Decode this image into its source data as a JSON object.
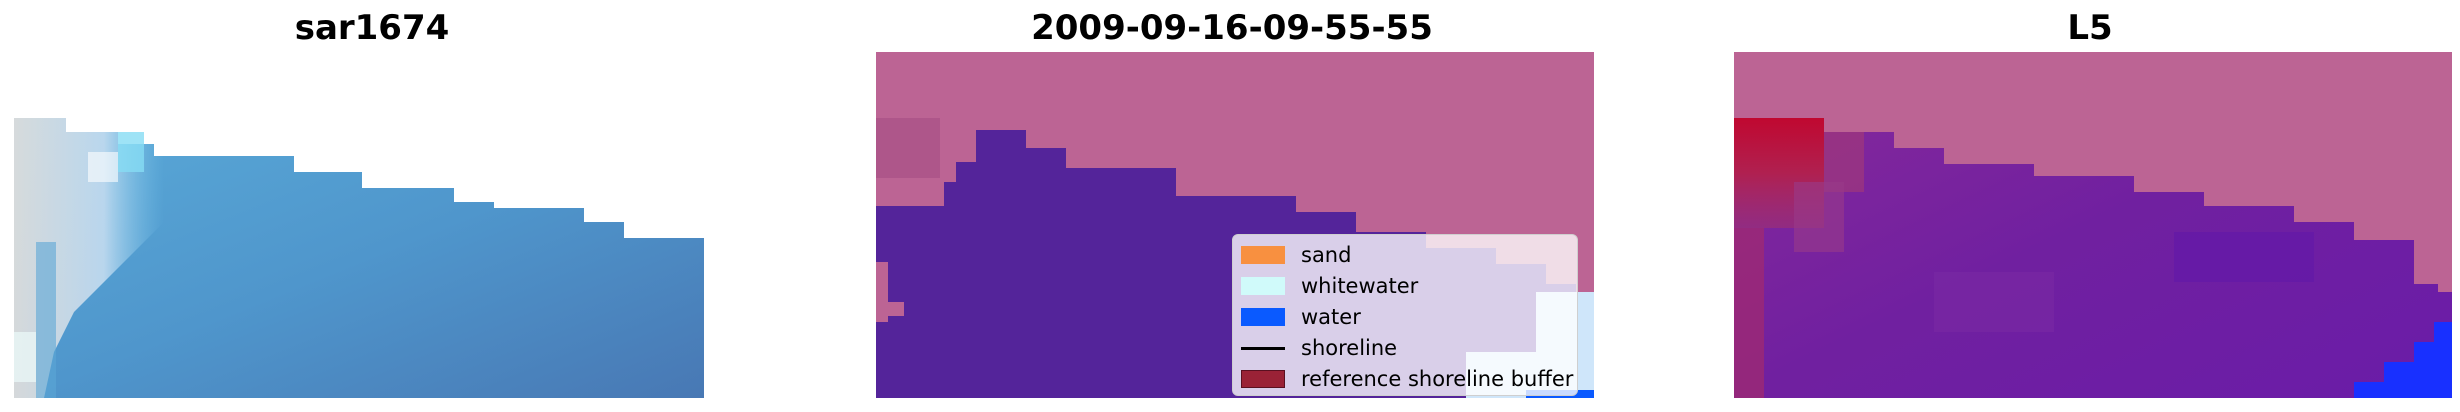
{
  "panels": [
    {
      "title": "sar1674"
    },
    {
      "title": "2009-09-16-09-55-55"
    },
    {
      "title": "L5"
    }
  ],
  "legend": {
    "items": [
      {
        "label": "sand",
        "color": "#f89040",
        "kind": "patch"
      },
      {
        "label": "whitewater",
        "color": "#d0fafa",
        "kind": "patch"
      },
      {
        "label": "water",
        "color": "#0a5aff",
        "kind": "patch"
      },
      {
        "label": "shoreline",
        "color": "#000000",
        "kind": "line"
      },
      {
        "label": "reference shoreline buffer",
        "color": "#9a2236",
        "kind": "patch"
      }
    ]
  },
  "colors": {
    "sand_overlay": "#bc6494",
    "water_class": "#54249a",
    "sar_water": "#4a8cc4",
    "l5_red": "#c00830",
    "l5_purple": "#7020a0",
    "l5_blue": "#1830ff"
  }
}
